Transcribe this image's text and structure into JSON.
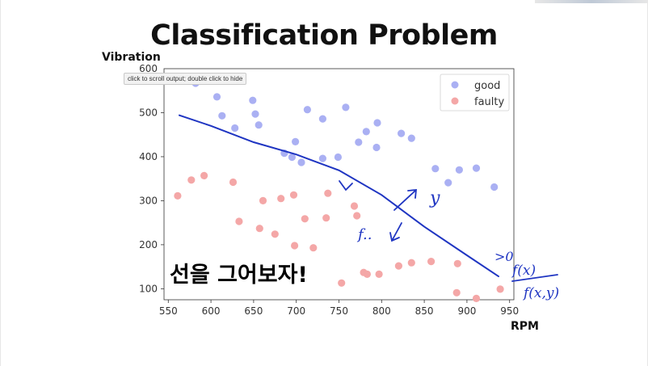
{
  "slide": {
    "title": "Classification Problem",
    "ylabel": "Vibration",
    "xlabel": "RPM",
    "tooltip": "click to scroll output; double click to hide",
    "korean_text": "선을 그어보자!"
  },
  "annotations": {
    "f_label": "f..",
    "y_label": "y",
    "gt_zero": ">0",
    "fraction_numerator": "f(x)",
    "fraction_denominator": "f(x,y)"
  },
  "colors": {
    "good": "#aab0f3",
    "faulty": "#f4a7a7",
    "ink": "#1f35c2"
  },
  "chart_data": {
    "type": "scatter",
    "xlim": [
      545,
      955
    ],
    "ylim": [
      75,
      600
    ],
    "xticks": [
      550,
      600,
      650,
      700,
      750,
      800,
      850,
      900,
      950
    ],
    "yticks": [
      100,
      200,
      300,
      400,
      500
    ],
    "ytick_top_partial": "600",
    "grid": false,
    "legend": "top-right",
    "series": [
      {
        "name": "good",
        "points": [
          [
            582,
            567
          ],
          [
            607,
            536
          ],
          [
            613,
            493
          ],
          [
            628,
            465
          ],
          [
            649,
            528
          ],
          [
            652,
            497
          ],
          [
            656,
            472
          ],
          [
            686,
            408
          ],
          [
            695,
            399
          ],
          [
            699,
            434
          ],
          [
            706,
            387
          ],
          [
            713,
            507
          ],
          [
            731,
            486
          ],
          [
            731,
            396
          ],
          [
            749,
            399
          ],
          [
            758,
            512
          ],
          [
            773,
            433
          ],
          [
            782,
            457
          ],
          [
            795,
            477
          ],
          [
            794,
            421
          ],
          [
            823,
            453
          ],
          [
            835,
            442
          ],
          [
            863,
            373
          ],
          [
            878,
            341
          ],
          [
            891,
            370
          ],
          [
            911,
            374
          ],
          [
            932,
            331
          ]
        ]
      },
      {
        "name": "faulty",
        "points": [
          [
            561,
            311
          ],
          [
            577,
            347
          ],
          [
            592,
            357
          ],
          [
            626,
            342
          ],
          [
            633,
            253
          ],
          [
            657,
            237
          ],
          [
            661,
            300
          ],
          [
            675,
            224
          ],
          [
            682,
            305
          ],
          [
            697,
            313
          ],
          [
            698,
            198
          ],
          [
            710,
            259
          ],
          [
            720,
            193
          ],
          [
            735,
            261
          ],
          [
            737,
            317
          ],
          [
            753,
            113
          ],
          [
            768,
            288
          ],
          [
            771,
            266
          ],
          [
            779,
            137
          ],
          [
            783,
            133
          ],
          [
            797,
            133
          ],
          [
            820,
            152
          ],
          [
            835,
            159
          ],
          [
            858,
            162
          ],
          [
            889,
            157
          ],
          [
            888,
            91
          ],
          [
            911,
            78
          ],
          [
            939,
            99
          ]
        ]
      }
    ],
    "drawn_line": [
      [
        563,
        494
      ],
      [
        600,
        470
      ],
      [
        650,
        433
      ],
      [
        700,
        405
      ],
      [
        750,
        369
      ],
      [
        800,
        313
      ],
      [
        850,
        241
      ],
      [
        900,
        176
      ],
      [
        937,
        128
      ]
    ]
  }
}
